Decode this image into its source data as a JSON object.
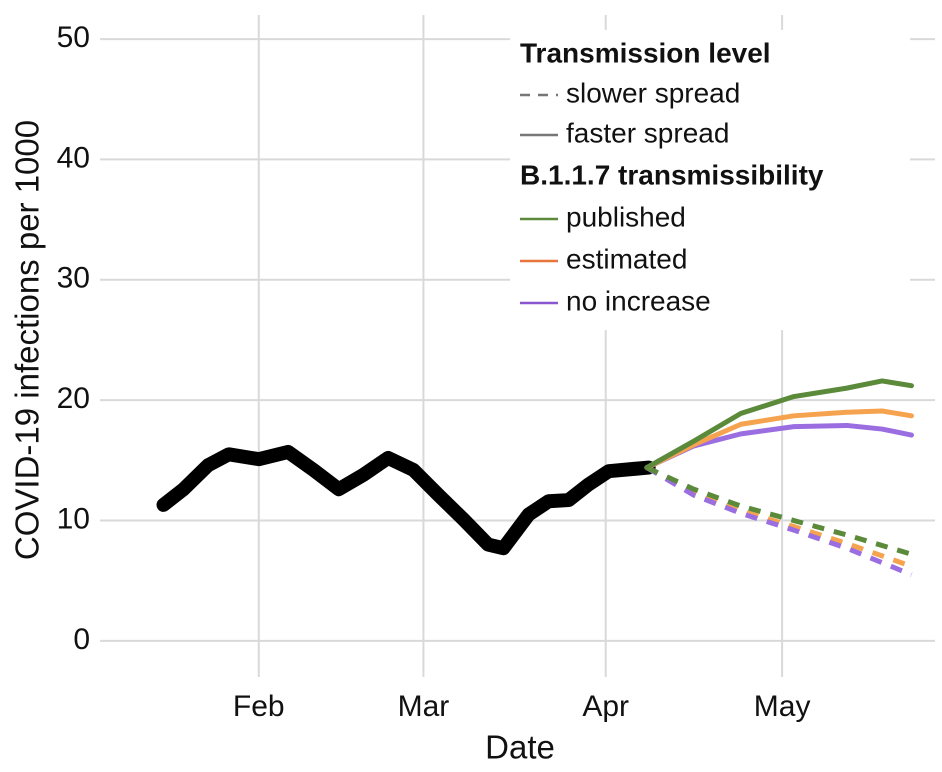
{
  "chart_data": {
    "type": "line",
    "xlabel": "Date",
    "ylabel": "COVID-19 infections per 1000",
    "xlim": [
      4,
      146
    ],
    "xticks": [
      {
        "value": 31,
        "label": "Feb"
      },
      {
        "value": 59,
        "label": "Mar"
      },
      {
        "value": 90,
        "label": "Apr"
      },
      {
        "value": 120,
        "label": "May"
      }
    ],
    "ylim": [
      -3,
      52
    ],
    "yticks": [
      0,
      10,
      20,
      30,
      40,
      50
    ],
    "grid": true,
    "legend": {
      "position": "upper right",
      "linetype_title": "Transmission level",
      "linetypes": [
        {
          "name": "slower spread",
          "dash": true,
          "color": "#777777"
        },
        {
          "name": "faster spread",
          "dash": false,
          "color": "#777777"
        }
      ],
      "color_title": "B.1.1.7 transmissibility",
      "colors": [
        {
          "name": "published",
          "color": "#5b8a3a"
        },
        {
          "name": "estimated",
          "color": "#e8763a"
        },
        {
          "name": "no increase",
          "color": "#8a55d0"
        }
      ]
    },
    "series": [
      {
        "color": "#000000",
        "dash": false,
        "width": 14,
        "x": [
          14.8,
          18.2,
          22.4,
          25.9,
          31,
          36,
          40.3,
          44.6,
          48.8,
          53,
          57.3,
          61.6,
          65.8,
          70,
          72.6,
          76.9,
          80.3,
          83.7,
          87.1,
          90.5,
          97.3
        ],
        "values": [
          11.3,
          12.6,
          14.6,
          15.5,
          15.1,
          15.7,
          14.2,
          12.6,
          13.8,
          15.2,
          14.2,
          12.1,
          10.1,
          8.0,
          7.7,
          10.5,
          11.6,
          11.7,
          13.0,
          14.1,
          14.4
        ]
      },
      {
        "color": "#f5a34f",
        "dash": true,
        "width": 5,
        "x": [
          97,
          105,
          113,
          122,
          131,
          142
        ],
        "values": [
          14.4,
          12.2,
          10.8,
          9.5,
          8.1,
          6.2
        ]
      },
      {
        "color": "#9a6ee0",
        "dash": true,
        "width": 5,
        "x": [
          97,
          105,
          113,
          122,
          131,
          142
        ],
        "values": [
          14.4,
          12.1,
          10.6,
          9.2,
          7.7,
          5.5
        ]
      },
      {
        "color": "#5b8a3a",
        "dash": true,
        "width": 5,
        "x": [
          97,
          105,
          113,
          122,
          131,
          142
        ],
        "values": [
          14.4,
          12.6,
          11.2,
          10.0,
          8.8,
          7.2
        ]
      },
      {
        "color": "#9a6ee0",
        "dash": false,
        "width": 5,
        "x": [
          97,
          105,
          113,
          122,
          131,
          137,
          142
        ],
        "values": [
          14.4,
          16.2,
          17.2,
          17.8,
          17.9,
          17.6,
          17.1
        ]
      },
      {
        "color": "#f5a34f",
        "dash": false,
        "width": 5,
        "x": [
          97,
          105,
          113,
          122,
          131,
          137,
          142
        ],
        "values": [
          14.4,
          16.3,
          18.0,
          18.7,
          19.0,
          19.1,
          18.7
        ]
      },
      {
        "color": "#5b8a3a",
        "dash": false,
        "width": 5,
        "x": [
          97,
          105,
          113,
          122,
          131,
          137,
          142
        ],
        "values": [
          14.4,
          16.6,
          18.9,
          20.3,
          21.0,
          21.6,
          21.2
        ]
      }
    ]
  }
}
